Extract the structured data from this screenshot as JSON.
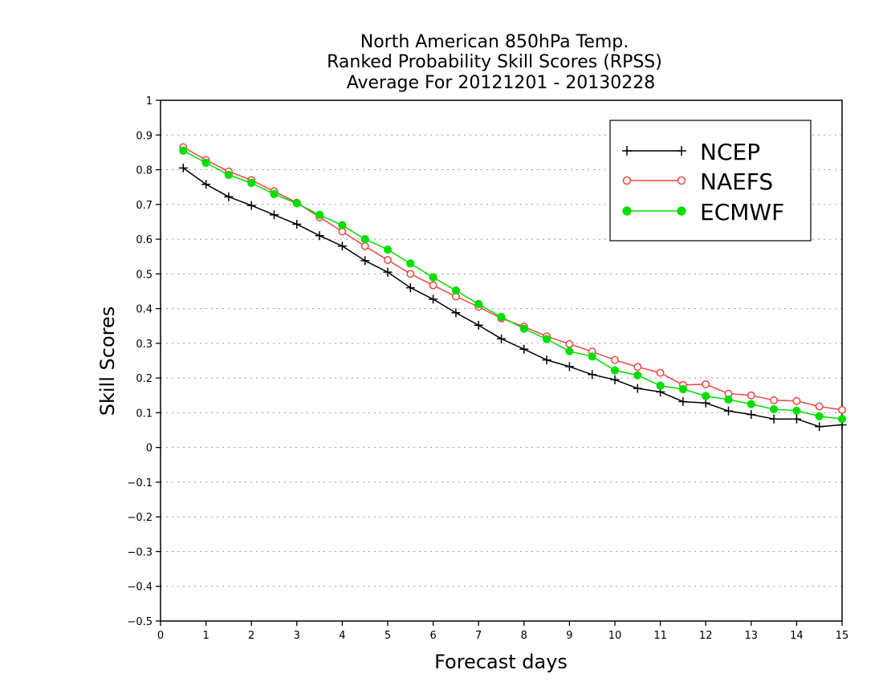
{
  "chart_data": {
    "type": "line",
    "title": [
      "North American 850hPa Temp.",
      "Ranked Probability Skill Scores (RPSS)",
      "Average For 20121201 - 20130228"
    ],
    "xlabel": "Forecast days",
    "ylabel": "Skill Scores",
    "xlim": [
      0,
      15
    ],
    "ylim": [
      -0.5,
      1
    ],
    "x_ticks": [
      0,
      1,
      2,
      3,
      4,
      5,
      6,
      7,
      8,
      9,
      10,
      11,
      12,
      13,
      14,
      15
    ],
    "y_ticks": [
      -0.5,
      -0.4,
      -0.3,
      -0.2,
      -0.1,
      0,
      0.1,
      0.2,
      0.3,
      0.4,
      0.5,
      0.6,
      0.7,
      0.8,
      0.9,
      1
    ],
    "x_tick_labels": [
      "0",
      "1",
      "2",
      "3",
      "4",
      "5",
      "6",
      "7",
      "8",
      "9",
      "10",
      "11",
      "12",
      "13",
      "14",
      "15"
    ],
    "y_tick_labels": [
      "−0.5",
      "−0.4",
      "−0.3",
      "−0.2",
      "−0.1",
      "0",
      "0.1",
      "0.2",
      "0.3",
      "0.4",
      "0.5",
      "0.6",
      "0.7",
      "0.8",
      "0.9",
      "1"
    ],
    "grid": "horizontal dotted",
    "legend": "top-right",
    "x": [
      0.5,
      1,
      1.5,
      2,
      2.5,
      3,
      3.5,
      4,
      4.5,
      5,
      5.5,
      6,
      6.5,
      7,
      7.5,
      8,
      8.5,
      9,
      9.5,
      10,
      10.5,
      11,
      11.5,
      12,
      12.5,
      13,
      13.5,
      14,
      14.5,
      15
    ],
    "series": [
      {
        "name": "NCEP",
        "color": "#000000",
        "marker": "plus",
        "values": [
          0.805,
          0.758,
          0.722,
          0.697,
          0.67,
          0.643,
          0.61,
          0.58,
          0.538,
          0.505,
          0.46,
          0.427,
          0.388,
          0.352,
          0.313,
          0.283,
          0.252,
          0.233,
          0.21,
          0.195,
          0.17,
          0.16,
          0.132,
          0.128,
          0.105,
          0.095,
          0.082,
          0.082,
          0.06,
          0.065
        ]
      },
      {
        "name": "NAEFS",
        "color": "#ee4444",
        "marker": "open-circle",
        "values": [
          0.865,
          0.828,
          0.795,
          0.77,
          0.738,
          0.705,
          0.663,
          0.622,
          0.58,
          0.54,
          0.5,
          0.467,
          0.435,
          0.405,
          0.372,
          0.348,
          0.32,
          0.298,
          0.276,
          0.252,
          0.232,
          0.215,
          0.18,
          0.182,
          0.155,
          0.15,
          0.136,
          0.134,
          0.118,
          0.108
        ]
      },
      {
        "name": "ECMWF",
        "color": "#00dd00",
        "marker": "filled-circle",
        "values": [
          0.855,
          0.82,
          0.785,
          0.762,
          0.73,
          0.703,
          0.67,
          0.64,
          0.6,
          0.57,
          0.53,
          0.49,
          0.452,
          0.413,
          0.376,
          0.342,
          0.312,
          0.277,
          0.262,
          0.222,
          0.208,
          0.178,
          0.168,
          0.148,
          0.138,
          0.125,
          0.11,
          0.106,
          0.09,
          0.082
        ]
      }
    ]
  }
}
